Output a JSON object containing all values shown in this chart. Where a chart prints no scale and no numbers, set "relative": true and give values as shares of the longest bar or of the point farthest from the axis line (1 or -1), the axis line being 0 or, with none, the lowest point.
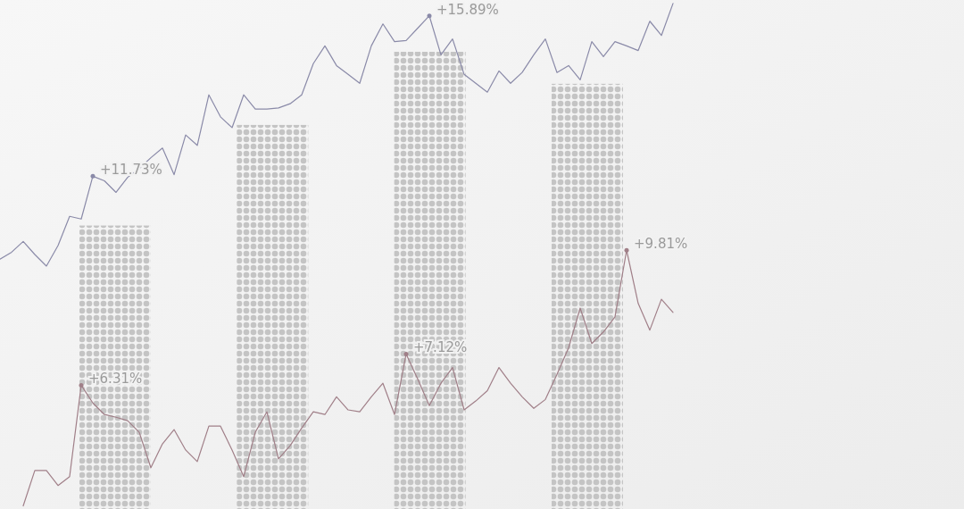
{
  "chart_data": [
    {
      "type": "bar",
      "relative": true,
      "categories": [
        null,
        null,
        null,
        null
      ],
      "series": [
        {
          "color": "#c4c4c4",
          "values": [
            0.62,
            0.84,
            1.0,
            0.93
          ]
        }
      ]
    },
    {
      "type": "line",
      "ylim": [
        3.1,
        16.3
      ],
      "categories": [
        null,
        null,
        null,
        null,
        null,
        null,
        null,
        null,
        null,
        null,
        null,
        null,
        null,
        null,
        null,
        null,
        null,
        null,
        null,
        null,
        null,
        null,
        null,
        null,
        null,
        null,
        null,
        null,
        null,
        null,
        null,
        null,
        null,
        null,
        null,
        null,
        null,
        null,
        null,
        null,
        null,
        null,
        null,
        null,
        null,
        null,
        null,
        null,
        null,
        null,
        null,
        null,
        null,
        null,
        null,
        null,
        null,
        null,
        null
      ],
      "series": [
        {
          "color": "#8a8aa8",
          "values": [
            9.58,
            9.76,
            10.04,
            9.7,
            9.4,
            9.93,
            10.69,
            10.62,
            11.73,
            11.61,
            11.31,
            11.7,
            11.93,
            12.21,
            12.46,
            11.77,
            12.8,
            12.53,
            13.84,
            13.27,
            12.99,
            13.84,
            13.47,
            13.47,
            13.5,
            13.61,
            13.84,
            14.65,
            15.11,
            14.6,
            14.37,
            14.14,
            15.11,
            15.68,
            15.22,
            15.25,
            15.57,
            15.89,
            14.88,
            15.29,
            14.37,
            14.14,
            13.91,
            14.46,
            14.14,
            14.42,
            14.88,
            15.29,
            14.42,
            14.6,
            14.23,
            15.22,
            14.83,
            15.22,
            15.11,
            14.99,
            15.75,
            15.38,
            16.21
          ],
          "value_labels": [
            null,
            null,
            null,
            null,
            null,
            null,
            null,
            null,
            "+11.73%",
            null,
            null,
            null,
            null,
            null,
            null,
            null,
            null,
            null,
            null,
            null,
            null,
            null,
            null,
            null,
            null,
            null,
            null,
            null,
            null,
            null,
            null,
            null,
            null,
            null,
            null,
            null,
            null,
            "+15.89%",
            null,
            null,
            null,
            null,
            null,
            null,
            null,
            null,
            null,
            null,
            null,
            null,
            null,
            null,
            null,
            null,
            null,
            null,
            null,
            null,
            null
          ]
        }
      ]
    },
    {
      "type": "line",
      "ylim": [
        3.1,
        16.3
      ],
      "categories": [
        null,
        null,
        null,
        null,
        null,
        null,
        null,
        null,
        null,
        null,
        null,
        null,
        null,
        null,
        null,
        null,
        null,
        null,
        null,
        null,
        null,
        null,
        null,
        null,
        null,
        null,
        null,
        null,
        null,
        null,
        null,
        null,
        null,
        null,
        null,
        null,
        null,
        null,
        null,
        null,
        null,
        null,
        null,
        null,
        null,
        null,
        null,
        null,
        null,
        null,
        null,
        null,
        null,
        null,
        null,
        null,
        null
      ],
      "series": [
        {
          "color": "#a07f88",
          "values": [
            3.18,
            4.1,
            4.1,
            3.71,
            3.94,
            6.31,
            5.85,
            5.55,
            5.48,
            5.39,
            5.09,
            4.17,
            4.79,
            5.16,
            4.63,
            4.33,
            5.25,
            5.25,
            4.63,
            3.94,
            5.09,
            5.62,
            4.4,
            4.74,
            5.2,
            5.62,
            5.55,
            6.01,
            5.67,
            5.62,
            6.01,
            6.36,
            5.55,
            7.12,
            6.47,
            5.78,
            6.36,
            6.77,
            5.67,
            5.9,
            6.17,
            6.77,
            6.36,
            6.01,
            5.71,
            5.94,
            6.59,
            7.28,
            8.31,
            7.39,
            7.69,
            8.08,
            9.81,
            8.43,
            7.74,
            8.54,
            8.2
          ],
          "value_labels": [
            null,
            null,
            null,
            null,
            null,
            "+6.31%",
            null,
            null,
            null,
            null,
            null,
            null,
            null,
            null,
            null,
            null,
            null,
            null,
            null,
            null,
            null,
            null,
            null,
            null,
            null,
            null,
            null,
            null,
            null,
            null,
            null,
            null,
            null,
            "+7.12%",
            null,
            null,
            null,
            null,
            null,
            null,
            null,
            null,
            null,
            null,
            null,
            null,
            null,
            null,
            null,
            null,
            null,
            null,
            "+9.81%",
            null,
            null,
            null,
            null
          ]
        }
      ]
    }
  ]
}
